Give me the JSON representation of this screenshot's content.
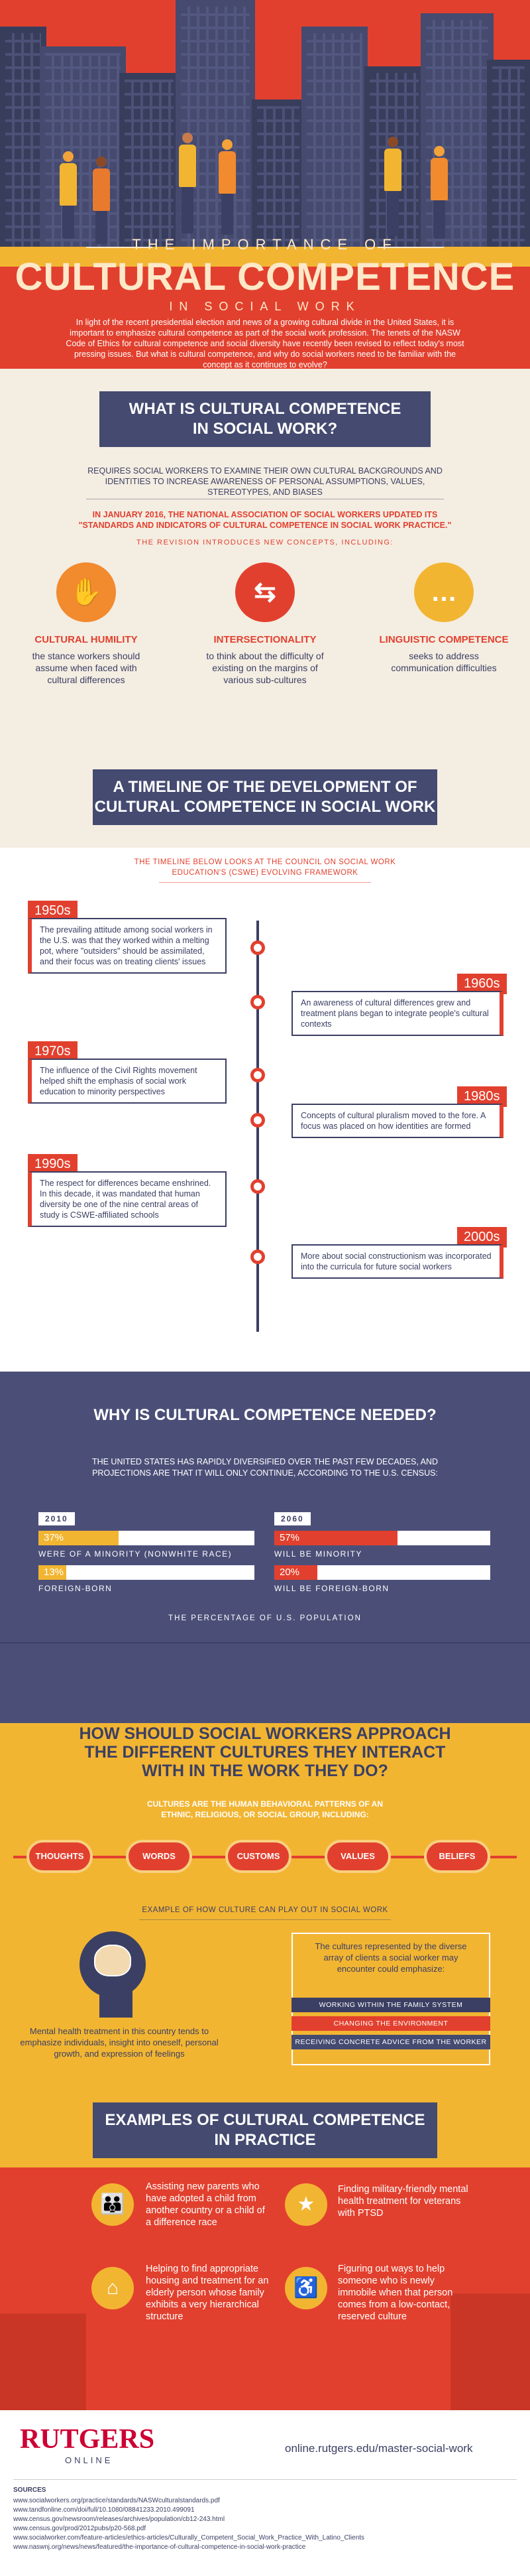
{
  "hero": {
    "title_top": "THE IMPORTANCE OF",
    "title_main": "CULTURAL COMPETENCE",
    "title_bottom": "IN SOCIAL WORK",
    "intro": "In light of the recent presidential election and news of a growing cultural divide in the United States, it is important to emphasize cultural competence as part of the social work profession. The tenets of the NASW Code of Ethics for cultural competence and social diversity have recently been revised to reflect today's most pressing issues. But what is cultural competence, and why do social workers need to be familiar with the concept as it continues to evolve?"
  },
  "what": {
    "heading_line1": "WHAT IS CULTURAL COMPETENCE",
    "heading_line2": "IN SOCIAL WORK?",
    "definition": "REQUIRES SOCIAL WORKERS TO EXAMINE THEIR OWN CULTURAL BACKGROUNDS AND IDENTITIES TO INCREASE AWARENESS OF PERSONAL ASSUMPTIONS, VALUES, STEREOTYPES, AND BIASES",
    "nasw": "IN JANUARY 2016, THE NATIONAL ASSOCIATION OF SOCIAL WORKERS UPDATED ITS \"STANDARDS AND INDICATORS OF CULTURAL COMPETENCE IN SOCIAL WORK PRACTICE.\"",
    "revision": "THE REVISION INTRODUCES NEW CONCEPTS, INCLUDING:",
    "concepts": [
      {
        "icon": "handshake-icon",
        "glyph": "✋",
        "title": "CULTURAL HUMILITY",
        "desc": "the stance workers should assume when faced with cultural differences"
      },
      {
        "icon": "crossing-arrows-icon",
        "glyph": "⇆",
        "title": "INTERSECTIONALITY",
        "desc": "to think about the difficulty of existing on the margins of various sub-cultures"
      },
      {
        "icon": "speech-bubble-icon",
        "glyph": "…",
        "title": "LINGUISTIC COMPETENCE",
        "desc": "seeks to address communication difficulties"
      }
    ]
  },
  "timeline": {
    "heading_line1": "A TIMELINE OF THE DEVELOPMENT OF",
    "heading_line2": "CULTURAL COMPETENCE IN SOCIAL WORK",
    "subtitle": "THE TIMELINE BELOW LOOKS AT THE COUNCIL ON SOCIAL WORK EDUCATION'S (CSWE) EVOLVING FRAMEWORK",
    "entries": [
      {
        "decade": "1950s",
        "text": "The prevailing attitude among social workers in the U.S. was that they worked within a melting pot, where \"outsiders\" should be assimilated, and their focus was on treating clients' issues"
      },
      {
        "decade": "1960s",
        "text": "An awareness of cultural differences grew and treatment plans began to integrate people's cultural contexts"
      },
      {
        "decade": "1970s",
        "text": "The influence of the Civil Rights movement helped shift the emphasis of social work education to minority perspectives"
      },
      {
        "decade": "1980s",
        "text": "Concepts of cultural pluralism moved to the fore. A focus was placed on how identities are formed"
      },
      {
        "decade": "1990s",
        "text": "The respect for differences became enshrined. In this decade, it was mandated that human diversity be one of the nine central areas of study is CSWE-affiliated schools"
      },
      {
        "decade": "2000s",
        "text": "More about social constructionism was incorporated into the curricula for future social workers"
      }
    ]
  },
  "why": {
    "heading": "WHY IS CULTURAL COMPETENCE NEEDED?",
    "text": "THE UNITED STATES HAS RAPIDLY DIVERSIFIED OVER THE PAST FEW DECADES, AND PROJECTIONS ARE THAT IT WILL ONLY CONTINUE, ACCORDING TO THE U.S. CENSUS:",
    "left_year": "2010",
    "right_year": "2060",
    "stats": [
      {
        "value": "37%",
        "fraction": 0.37,
        "label": "WERE OF A MINORITY (NONWHITE RACE)"
      },
      {
        "value": "13%",
        "fraction": 0.13,
        "label": "FOREIGN-BORN"
      },
      {
        "value": "57%",
        "fraction": 0.57,
        "label": "WILL BE MINORITY"
      },
      {
        "value": "20%",
        "fraction": 0.2,
        "label": "WILL BE FOREIGN-BORN"
      }
    ],
    "footnote": "THE PERCENTAGE OF U.S. POPULATION"
  },
  "how": {
    "heading_line1": "HOW SHOULD SOCIAL WORKERS APPROACH",
    "heading_line2": "THE DIFFERENT CULTURES THEY INTERACT",
    "heading_line3": "WITH IN THE WORK THEY DO?",
    "intro": "CULTURES ARE THE HUMAN BEHAVIORAL PATTERNS OF AN ETHNIC, RELIGIOUS, OR SOCIAL GROUP, INCLUDING:",
    "pills": [
      "THOUGHTS",
      "WORDS",
      "CUSTOMS",
      "VALUES",
      "BELIEFS"
    ],
    "example_title": "EXAMPLE OF HOW CULTURE CAN PLAY OUT IN SOCIAL WORK",
    "mental_health": "Mental health treatment in this country tends to emphasize individuals, insight into oneself, personal growth, and expression of feelings",
    "cultures_text": "The cultures represented by the diverse array of clients a social worker may encounter could emphasize:",
    "emphasis": [
      "WORKING WITHIN THE FAMILY SYSTEM",
      "CHANGING THE ENVIRONMENT",
      "RECEIVING CONCRETE ADVICE FROM THE WORKER"
    ]
  },
  "examples": {
    "heading_line1": "EXAMPLES OF CULTURAL COMPETENCE",
    "heading_line2": "IN PRACTICE",
    "items": [
      {
        "icon": "family-icon",
        "glyph": "👪",
        "text": "Assisting new parents who have adopted a child from another country or a child of a difference race"
      },
      {
        "icon": "veteran-icon",
        "glyph": "★",
        "text": "Finding military-friendly mental health treatment for veterans with PTSD"
      },
      {
        "icon": "elderly-person-icon",
        "glyph": "⌂",
        "text": "Helping to find appropriate housing and treatment for an elderly person whose family exhibits a very hierarchical structure"
      },
      {
        "icon": "wheelchair-icon",
        "glyph": "♿",
        "text": "Figuring out ways to help someone who is newly immobile when that person comes from a low-contact, reserved culture"
      }
    ]
  },
  "footer": {
    "logo": "RUTGERS",
    "logo_sub": "ONLINE",
    "url": "online.rutgers.edu/master-social-work",
    "sources_title": "SOURCES",
    "sources": [
      "www.socialworkers.org/practice/standards/NASWculturalstandards.pdf",
      "www.tandfonline.com/doi/full/10.1080/08841233.2010.499091",
      "www.census.gov/newsroom/releases/archives/population/cb12-243.html",
      "www.census.gov/prod/2012pubs/p20-568.pdf",
      "www.socialworker.com/feature-articles/ethics-articles/Culturally_Competent_Social_Work_Practice_With_Latino_Clients",
      "www.naswnj.org/news/news/featured/the-importance-of-cultural-competence-in-social-work-practice"
    ]
  },
  "colors": {
    "red": "#e2402e",
    "navy": "#444a70",
    "gold": "#f2b532",
    "cream": "#f4ede2"
  }
}
